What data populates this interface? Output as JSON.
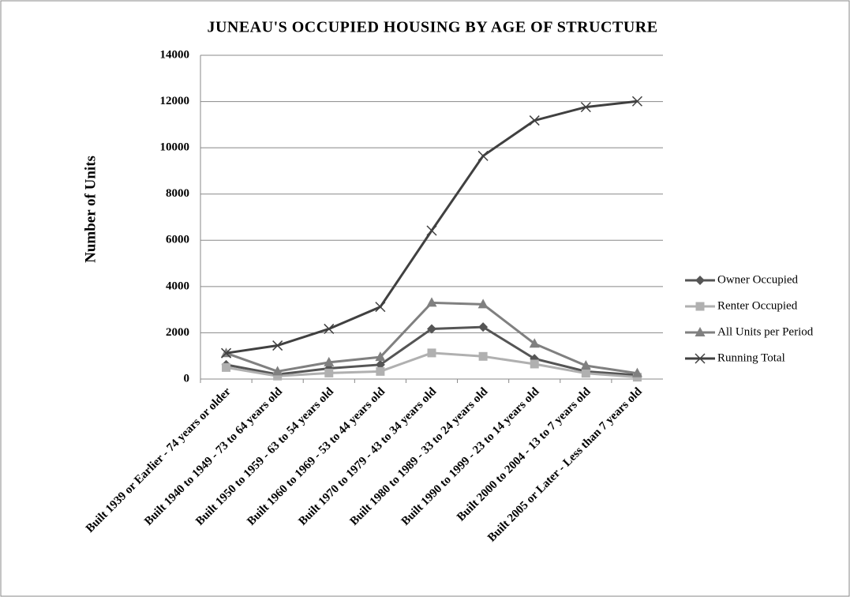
{
  "chart_data": {
    "type": "line",
    "title": "JUNEAU'S OCCUPIED HOUSING BY AGE OF STRUCTURE",
    "y_label": "Number of Units",
    "categories": [
      "Built 1939 or Earlier - 74 years or older",
      "Built 1940 to 1949 - 73 to 64 years old",
      "Built 1950 to 1959 - 63 to 54 years old",
      "Built 1960 to 1969 - 53 to 44 years old",
      "Built 1970 to 1979 - 43 to 34 years old",
      "Built 1980 to 1989 - 33 to 24 years old",
      "Built 1990 to 1999 - 23 to 14 years old",
      "Built 2000 to 2004 - 13 to 7 years old",
      "Built 2005 or Later - Less than 7 years old"
    ],
    "series": [
      {
        "name": "Owner Occupied",
        "color": "#555555",
        "marker": "diamond",
        "values": [
          620,
          200,
          460,
          620,
          2170,
          2250,
          880,
          330,
          170
        ]
      },
      {
        "name": "Renter Occupied",
        "color": "#b0b0b0",
        "marker": "square",
        "values": [
          500,
          130,
          260,
          330,
          1130,
          980,
          650,
          250,
          80
        ]
      },
      {
        "name": "All Units per Period",
        "color": "#808080",
        "marker": "triangle",
        "values": [
          1120,
          330,
          720,
          950,
          3300,
          3230,
          1530,
          580,
          250
        ]
      },
      {
        "name": "Running Total",
        "color": "#404040",
        "marker": "x",
        "values": [
          1120,
          1450,
          2170,
          3120,
          6420,
          9650,
          11180,
          11760,
          12010
        ]
      }
    ],
    "ylim": [
      0,
      14000
    ],
    "yticks": [
      0,
      2000,
      4000,
      6000,
      8000,
      10000,
      12000,
      14000
    ],
    "grid": true,
    "legend": "right"
  }
}
